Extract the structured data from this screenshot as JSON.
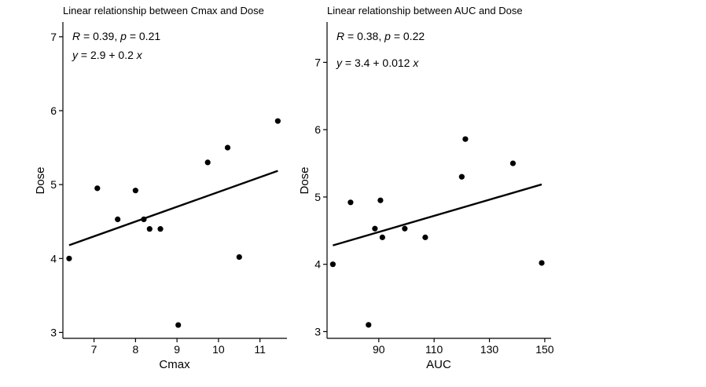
{
  "chart_data": [
    {
      "type": "scatter",
      "title": "Linear relationship between Cmax and Dose",
      "xlabel": "Cmax",
      "ylabel": "Dose",
      "xlim": [
        6.25,
        11.65
      ],
      "ylim": [
        2.92,
        7.2
      ],
      "xticks": [
        7,
        8,
        9,
        10,
        11
      ],
      "yticks": [
        3,
        4,
        5,
        6,
        7
      ],
      "x": [
        6.4,
        7.08,
        7.57,
        8.0,
        8.2,
        8.34,
        8.6,
        9.03,
        9.74,
        10.22,
        10.5,
        11.43
      ],
      "y": [
        4.0,
        4.95,
        4.53,
        4.92,
        4.53,
        4.4,
        4.4,
        3.1,
        5.3,
        5.5,
        4.02,
        5.86
      ],
      "fit": {
        "intercept": 2.9,
        "slope": 0.2,
        "x_range": [
          6.4,
          11.43
        ]
      },
      "annotation": {
        "r": "R = 0.39, p = 0.21",
        "eq": "y = 2.9 + 0.2 x"
      }
    },
    {
      "type": "scatter",
      "title": "Linear relationship between AUC and Dose",
      "xlabel": "AUC",
      "ylabel": "Dose",
      "xlim": [
        71.3,
        152.3
      ],
      "ylim": [
        2.9,
        7.6
      ],
      "xticks": [
        90,
        110,
        130,
        150
      ],
      "yticks": [
        3,
        4,
        5,
        6,
        7
      ],
      "x": [
        73.4,
        79.8,
        86.3,
        88.6,
        90.6,
        91.3,
        99.4,
        106.8,
        120.0,
        121.3,
        138.5,
        148.9
      ],
      "y": [
        4.0,
        4.92,
        3.1,
        4.53,
        4.95,
        4.4,
        4.53,
        4.4,
        5.3,
        5.86,
        5.5,
        4.02
      ],
      "fit": {
        "intercept": 3.4,
        "slope": 0.012,
        "x_range": [
          73.4,
          148.9
        ]
      },
      "annotation": {
        "r": "R = 0.38, p = 0.22",
        "eq": "y = 3.4 + 0.012 x"
      }
    }
  ]
}
